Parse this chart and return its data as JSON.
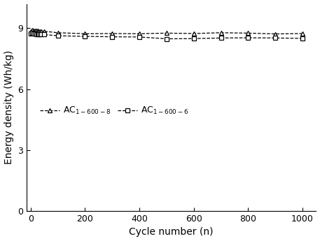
{
  "ac1600_8_x": [
    1,
    5,
    10,
    15,
    20,
    25,
    30,
    35,
    40,
    50,
    100,
    200,
    300,
    400,
    500,
    600,
    700,
    800,
    900,
    1000
  ],
  "ac1600_8_y": [
    8.85,
    8.9,
    8.88,
    8.88,
    8.87,
    8.87,
    8.86,
    8.86,
    8.86,
    8.85,
    8.78,
    8.73,
    8.74,
    8.73,
    8.76,
    8.74,
    8.78,
    8.76,
    8.72,
    8.74
  ],
  "ac1600_6_x": [
    1,
    5,
    10,
    15,
    20,
    25,
    30,
    35,
    40,
    50,
    100,
    200,
    300,
    400,
    500,
    600,
    700,
    800,
    900,
    1000
  ],
  "ac1600_6_y": [
    8.75,
    8.77,
    8.74,
    8.73,
    8.72,
    8.71,
    8.71,
    8.7,
    8.7,
    8.69,
    8.63,
    8.6,
    8.58,
    8.57,
    8.48,
    8.49,
    8.52,
    8.53,
    8.52,
    8.5
  ],
  "ylabel": "Energy density (Wh/kg)",
  "xlabel": "Cycle number (n)",
  "ylim": [
    0,
    10.2
  ],
  "xlim": [
    -15,
    1050
  ],
  "yticks": [
    0,
    3,
    6,
    9
  ],
  "xticks": [
    0,
    200,
    400,
    600,
    800,
    1000
  ],
  "line_color": "#000000",
  "background_color": "#ffffff"
}
